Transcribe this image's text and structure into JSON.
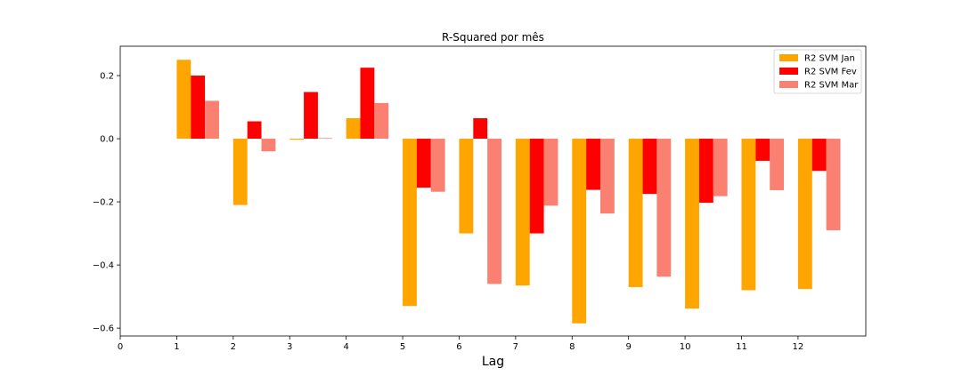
{
  "chart_data": {
    "type": "bar",
    "title": "R-Squared por mês",
    "xlabel": "Lag",
    "ylabel": "",
    "x_ticks": [
      0,
      1,
      2,
      3,
      4,
      5,
      6,
      7,
      8,
      9,
      10,
      11,
      12
    ],
    "y_ticks": [
      "0.2",
      "0.0",
      "−0.2",
      "−0.4",
      "−0.6"
    ],
    "y_tick_values": [
      0.2,
      0.0,
      -0.2,
      -0.4,
      -0.6
    ],
    "categories": [
      1,
      2,
      3,
      4,
      5,
      6,
      7,
      8,
      9,
      10,
      11,
      12
    ],
    "xlim": [
      0,
      13.2
    ],
    "ylim": [
      -0.625,
      0.293
    ],
    "grid": false,
    "legend_position": "top-right",
    "series": [
      {
        "name": "R2 SVM Jan",
        "color": "#FFA500",
        "values": [
          0.25,
          -0.21,
          -0.003,
          0.065,
          -0.53,
          -0.3,
          -0.465,
          -0.585,
          -0.47,
          -0.538,
          -0.48,
          -0.476
        ]
      },
      {
        "name": "R2 SVM Fev",
        "color": "#FF0000",
        "values": [
          0.2,
          0.055,
          0.148,
          0.225,
          -0.155,
          0.065,
          -0.3,
          -0.162,
          -0.175,
          -0.203,
          -0.07,
          -0.102
        ]
      },
      {
        "name": "R2 SVM Mar",
        "color": "#FA8072",
        "values": [
          0.12,
          -0.04,
          0.002,
          0.113,
          -0.168,
          -0.46,
          -0.212,
          -0.237,
          -0.437,
          -0.182,
          -0.163,
          -0.29
        ]
      }
    ]
  }
}
